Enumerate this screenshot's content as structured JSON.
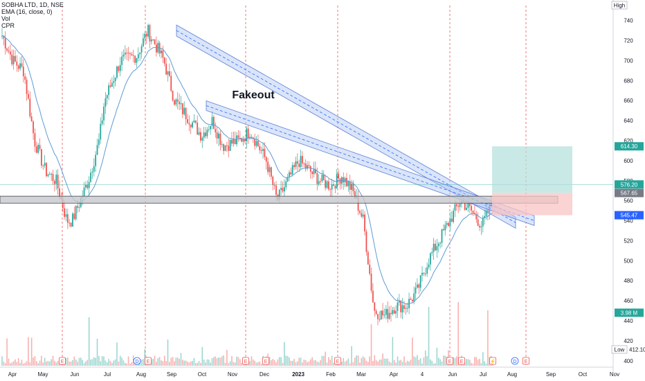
{
  "header": {
    "symbol": "SOBHA LTD, 1D, NSE",
    "ema": "EMA (16, close, 0)",
    "vol": "Vol",
    "cpr": "CPR"
  },
  "markers": {
    "high": "High",
    "low": "Low",
    "low_value": "412.10"
  },
  "annotation": "Fakeout",
  "colors": {
    "up": "#26a69a",
    "down": "#ef5350",
    "ema": "#5b9bd5",
    "channel_fill": "#aec6f5",
    "target_zone": "#b2dfdb",
    "stop_zone": "#f8c4c4"
  },
  "chart_data": {
    "type": "candlestick",
    "y_axis": {
      "range": [
        395,
        755
      ],
      "ticks": [
        400,
        420,
        440,
        460,
        480,
        500,
        520,
        540,
        560,
        580,
        600,
        620,
        640,
        660,
        680,
        700,
        720,
        740
      ]
    },
    "x_axis": {
      "labels": [
        "Apr",
        "May",
        "Jun",
        "Jul",
        "Aug",
        "Sep",
        "Oct",
        "Nov",
        "Dec",
        "2023",
        "Feb",
        "Mar",
        "Apr",
        "4",
        "Jun",
        "Jul",
        "Aug",
        "Sep",
        "Oct",
        "Nov"
      ]
    },
    "price_labels": [
      {
        "value": "614.30",
        "price": 614.3,
        "color": "#26a69a"
      },
      {
        "value": "576.20",
        "price": 576.2,
        "color": "#26a69a"
      },
      {
        "value": "567.65",
        "price": 567.65,
        "color": "#787b86"
      },
      {
        "value": "545.47",
        "price": 545.47,
        "color": "#2962ff"
      },
      {
        "value": "3.98 M",
        "price": 448,
        "color": "#26a69a"
      }
    ],
    "anchors": [
      [
        0,
        725
      ],
      [
        2,
        700
      ],
      [
        4,
        690
      ],
      [
        6,
        620
      ],
      [
        8,
        590
      ],
      [
        10,
        580
      ],
      [
        12,
        540
      ],
      [
        13,
        540
      ],
      [
        16,
        580
      ],
      [
        18,
        620
      ],
      [
        19,
        660
      ],
      [
        22,
        700
      ],
      [
        25,
        705
      ],
      [
        27,
        730
      ],
      [
        30,
        700
      ],
      [
        32,
        660
      ],
      [
        35,
        640
      ],
      [
        37,
        625
      ],
      [
        39,
        640
      ],
      [
        41,
        615
      ],
      [
        44,
        620
      ],
      [
        46,
        630
      ],
      [
        49,
        600
      ],
      [
        51,
        560
      ],
      [
        53,
        580
      ],
      [
        55,
        600
      ],
      [
        57,
        590
      ],
      [
        59,
        580
      ],
      [
        61,
        575
      ],
      [
        63,
        585
      ],
      [
        65,
        570
      ],
      [
        67,
        540
      ],
      [
        69,
        450
      ],
      [
        71,
        445
      ],
      [
        73,
        455
      ],
      [
        75,
        455
      ],
      [
        77,
        470
      ],
      [
        79,
        500
      ],
      [
        81,
        520
      ],
      [
        83,
        540
      ],
      [
        85,
        560
      ],
      [
        87,
        550
      ],
      [
        89,
        535
      ],
      [
        91,
        560
      ]
    ]
  }
}
